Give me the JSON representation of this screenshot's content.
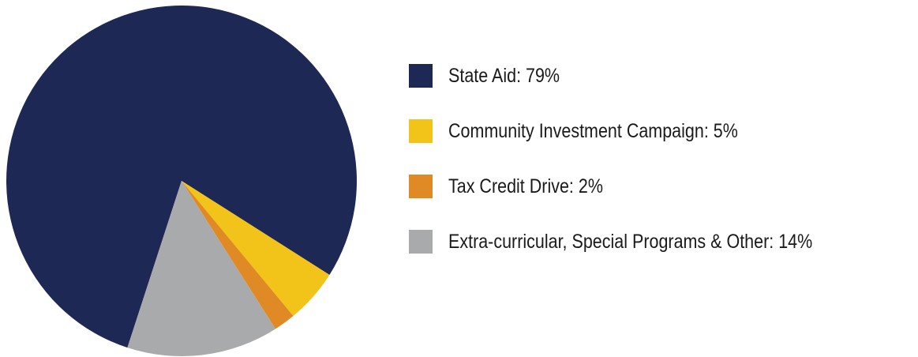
{
  "chart_data": {
    "type": "pie",
    "slices": [
      {
        "label": "State Aid",
        "value": 79,
        "color": "#1e2854"
      },
      {
        "label": "Community Investment Campaign",
        "value": 5,
        "color": "#f2c318"
      },
      {
        "label": "Tax Credit Drive",
        "value": 2,
        "color": "#e08a26"
      },
      {
        "label": "Extra-curricular, Special Programs & Other",
        "value": 14,
        "color": "#a9aaac"
      }
    ],
    "legend": {
      "position": "right",
      "items": [
        {
          "text": "State Aid:  79%"
        },
        {
          "text": "Community Investment Campaign:  5%"
        },
        {
          "text": "Tax Credit Drive:  2%"
        },
        {
          "text": "Extra-curricular, Special Programs & Other:  14%"
        }
      ]
    }
  }
}
